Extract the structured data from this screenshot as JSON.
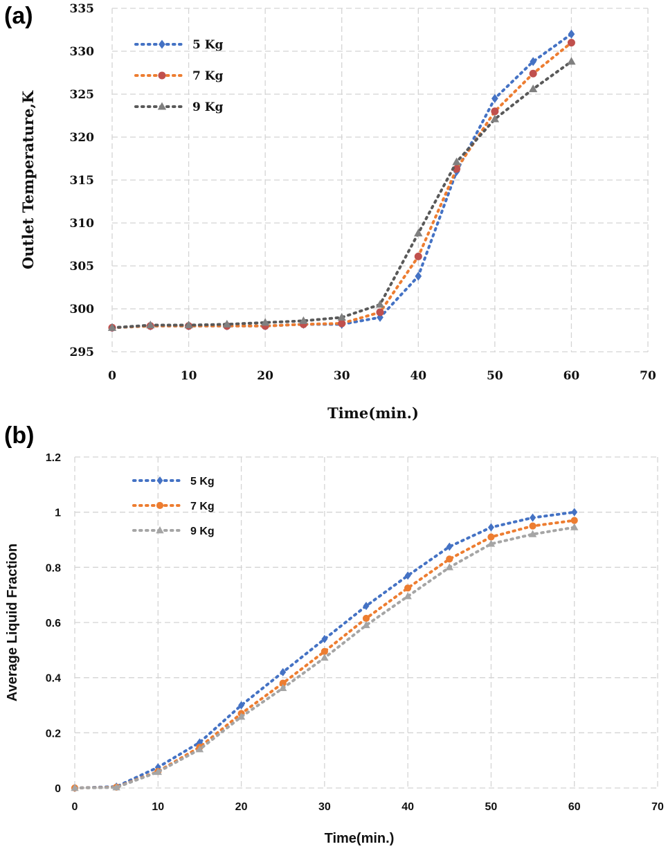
{
  "chart_data": [
    {
      "panel": "(a)",
      "type": "line",
      "title": "",
      "xlabel": "Time(min.)",
      "ylabel": "Outlet Temperature,K",
      "xlim": [
        0,
        70
      ],
      "ylim": [
        295,
        335
      ],
      "xticks": [
        0,
        10,
        20,
        30,
        40,
        50,
        60,
        70
      ],
      "yticks": [
        295,
        300,
        305,
        310,
        315,
        320,
        325,
        330,
        335
      ],
      "grid": true,
      "legend_position": "top-left",
      "x": [
        0,
        5,
        10,
        15,
        20,
        25,
        30,
        35,
        40,
        45,
        50,
        55,
        60
      ],
      "series": [
        {
          "name": "5 Kg",
          "color": "#4472C4",
          "marker": "diamond",
          "values": [
            297.8,
            298.0,
            298.0,
            298.0,
            298.0,
            298.2,
            298.2,
            299.0,
            303.8,
            316.0,
            324.5,
            328.8,
            332.0
          ]
        },
        {
          "name": "7 Kg",
          "color": "#ED7D31",
          "marker_color": "#C0504D",
          "marker": "circle",
          "values": [
            297.8,
            298.0,
            298.0,
            298.0,
            298.0,
            298.2,
            298.3,
            299.6,
            306.1,
            316.3,
            323.0,
            327.4,
            331.0
          ]
        },
        {
          "name": "9 Kg",
          "color": "#595959",
          "marker_color": "#808080",
          "marker": "triangle",
          "values": [
            297.8,
            298.1,
            298.1,
            298.2,
            298.4,
            298.6,
            299.0,
            300.5,
            308.8,
            317.1,
            322.1,
            325.6,
            328.8
          ]
        }
      ]
    },
    {
      "panel": "(b)",
      "type": "line",
      "title": "",
      "xlabel": "Time(min.)",
      "ylabel": "Average Liquid Fraction",
      "xlim": [
        0,
        70
      ],
      "ylim": [
        0,
        1.2
      ],
      "xticks": [
        0,
        10,
        20,
        30,
        40,
        50,
        60,
        70
      ],
      "yticks": [
        0,
        0.2,
        0.4,
        0.6,
        0.8,
        1,
        1.2
      ],
      "grid": true,
      "legend_position": "top-left",
      "x": [
        0,
        5,
        10,
        15,
        20,
        25,
        30,
        35,
        40,
        45,
        50,
        55,
        60
      ],
      "series": [
        {
          "name": "5 Kg",
          "color": "#4472C4",
          "marker": "diamond",
          "values": [
            0,
            0.005,
            0.075,
            0.165,
            0.3,
            0.42,
            0.54,
            0.66,
            0.77,
            0.875,
            0.945,
            0.98,
            1.0
          ]
        },
        {
          "name": "7 Kg",
          "color": "#ED7D31",
          "marker": "circle",
          "values": [
            0,
            0.003,
            0.06,
            0.148,
            0.27,
            0.38,
            0.495,
            0.615,
            0.725,
            0.83,
            0.91,
            0.95,
            0.97
          ]
        },
        {
          "name": "9 Kg",
          "color": "#A5A5A5",
          "marker": "triangle",
          "values": [
            0,
            0.002,
            0.058,
            0.14,
            0.258,
            0.362,
            0.472,
            0.59,
            0.695,
            0.8,
            0.885,
            0.92,
            0.945
          ]
        }
      ]
    }
  ]
}
